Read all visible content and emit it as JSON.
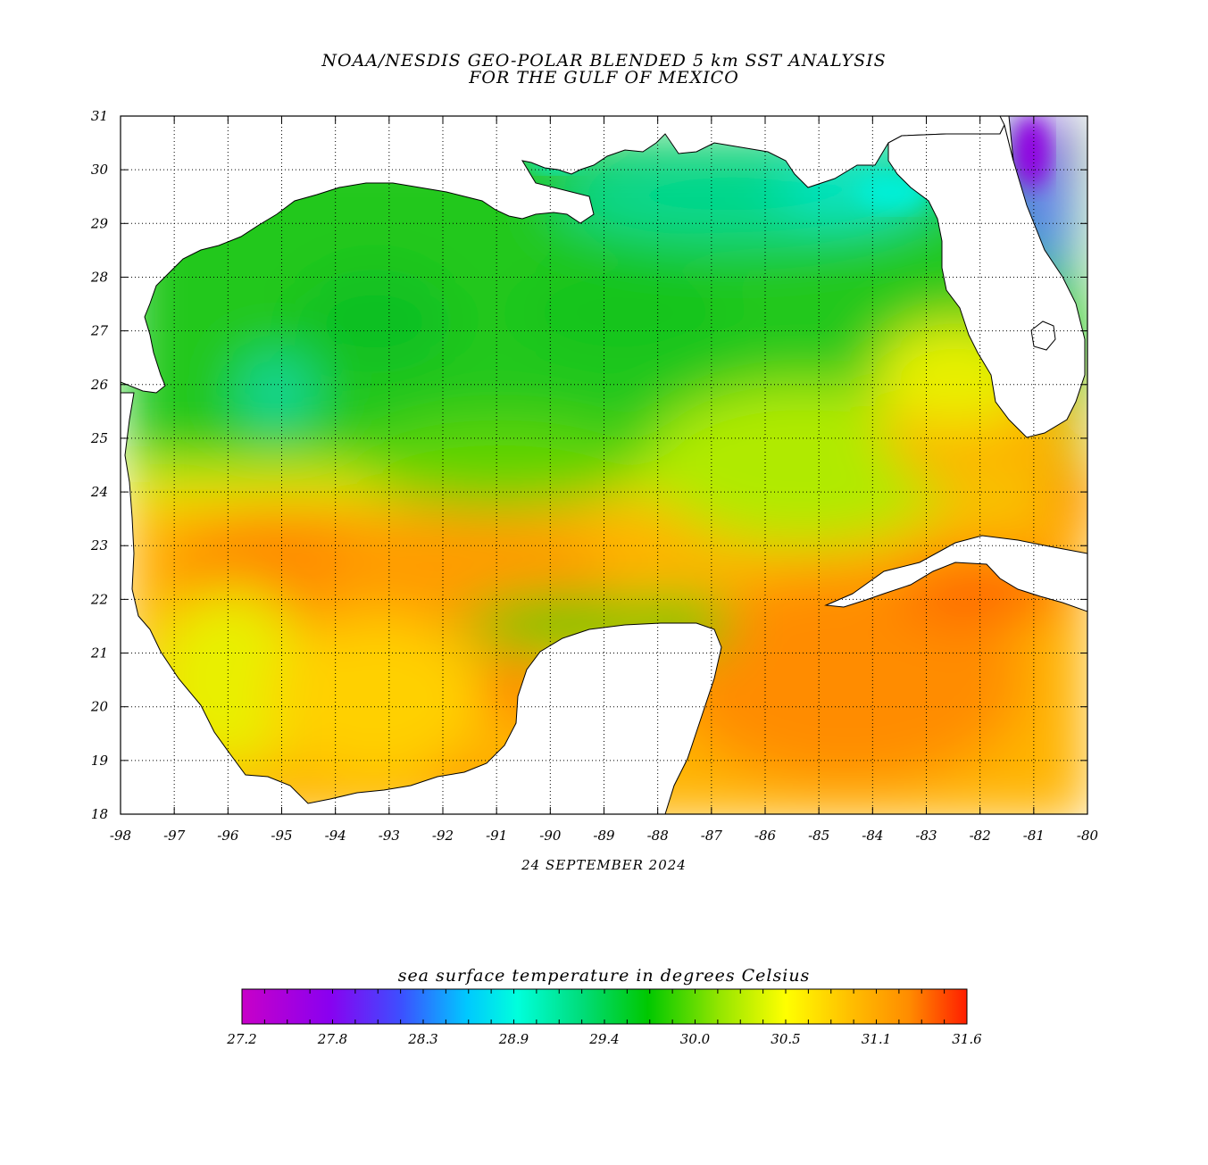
{
  "title": {
    "line1": "NOAA/NESDIS GEO-POLAR BLENDED 5 km SST ANALYSIS",
    "line2": "FOR THE GULF OF MEXICO"
  },
  "date": "24 SEPTEMBER 2024",
  "axes": {
    "x_ticks": [
      "-98",
      "-97",
      "-96",
      "-95",
      "-94",
      "-93",
      "-92",
      "-91",
      "-90",
      "-89",
      "-88",
      "-87",
      "-86",
      "-85",
      "-84",
      "-83",
      "-82",
      "-81",
      "-80"
    ],
    "y_ticks": [
      "31",
      "30",
      "29",
      "28",
      "27",
      "26",
      "25",
      "24",
      "23",
      "22",
      "21",
      "20",
      "19",
      "18"
    ],
    "lon_range": [
      -98,
      -80
    ],
    "lat_range": [
      18,
      31
    ],
    "grid": "dotted"
  },
  "colorbar": {
    "title": "sea surface temperature in degrees Celsius",
    "tick_labels": [
      "27.2",
      "27.8",
      "28.3",
      "28.9",
      "29.4",
      "30.0",
      "30.5",
      "31.1",
      "31.6"
    ],
    "range": [
      27.2,
      31.6
    ],
    "stops": [
      "#c800c8",
      "#8a00f0",
      "#3c50ff",
      "#00c8ff",
      "#00ffdc",
      "#00dc78",
      "#00c800",
      "#96e600",
      "#ffff00",
      "#ffbe00",
      "#ff8c00",
      "#ff1e00"
    ]
  },
  "colors": {
    "land": "#ffffff",
    "coast": "#000000",
    "green": "#1ec81e",
    "cyan": "#00e6c8",
    "yellow": "#f0ff00",
    "orange": "#ff9a00",
    "red": "#ff3c00",
    "purple": "#9a00e6",
    "blue": "#3c7aff"
  }
}
